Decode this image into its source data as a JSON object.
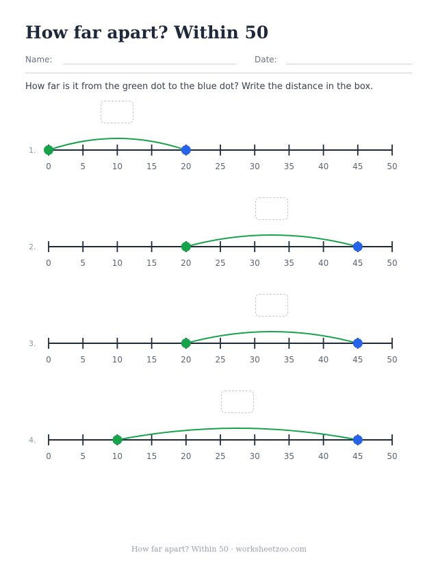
{
  "title": "How far apart? Within 50",
  "fields": {
    "name_label": "Name:",
    "date_label": "Date:"
  },
  "instructions": "How far is it from the green dot to the blue dot? Write the distance in the box.",
  "number_line": {
    "min": 0,
    "max": 50,
    "step": 5
  },
  "colors": {
    "start_dot": "#16a34a",
    "end_dot": "#2563eb",
    "arc": "#16a34a",
    "axis": "#1e2a3b"
  },
  "problems": [
    {
      "label": "1.",
      "start": 0,
      "end": 20,
      "answer": ""
    },
    {
      "label": "2.",
      "start": 20,
      "end": 45,
      "answer": ""
    },
    {
      "label": "3.",
      "start": 20,
      "end": 45,
      "answer": ""
    },
    {
      "label": "4.",
      "start": 10,
      "end": 45,
      "answer": ""
    }
  ],
  "footer": "How far apart? Within 50 · worksheetzoo.com"
}
